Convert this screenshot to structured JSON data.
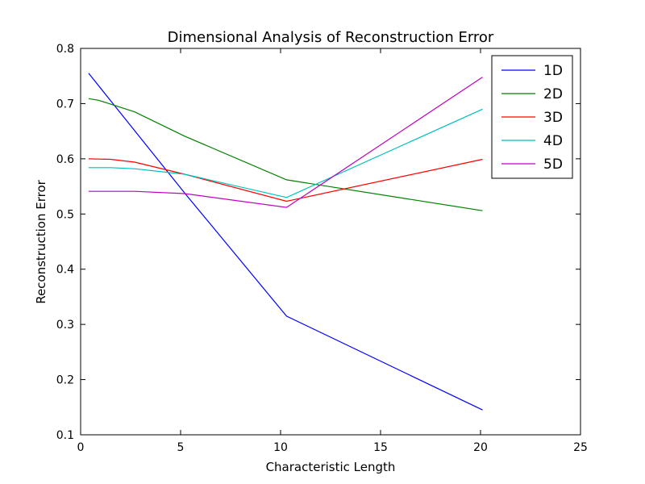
{
  "chart_data": {
    "type": "line",
    "title": "Dimensional Analysis of Reconstruction Error",
    "xlabel": "Characteristic Length",
    "ylabel": "Reconstruction Error",
    "xlim": [
      0,
      25
    ],
    "ylim": [
      0.1,
      0.8
    ],
    "xticks": [
      0,
      5,
      10,
      15,
      20,
      25
    ],
    "yticks": [
      0.1,
      0.2,
      0.3,
      0.4,
      0.5,
      0.6,
      0.7,
      0.8
    ],
    "grid": false,
    "legend_position": "top-right",
    "series": [
      {
        "name": "1D",
        "color": "#0000ff",
        "x": [
          0.4,
          5.2,
          10.3,
          20.1
        ],
        "y": [
          0.755,
          0.538,
          0.315,
          0.145
        ]
      },
      {
        "name": "2D",
        "color": "#008000",
        "x": [
          0.4,
          0.9,
          1.5,
          2.7,
          5.2,
          10.3,
          20.1
        ],
        "y": [
          0.709,
          0.706,
          0.699,
          0.685,
          0.641,
          0.562,
          0.506
        ]
      },
      {
        "name": "3D",
        "color": "#ff0000",
        "x": [
          0.4,
          1.5,
          2.7,
          5.2,
          10.3,
          20.1
        ],
        "y": [
          0.6,
          0.599,
          0.594,
          0.572,
          0.523,
          0.599
        ]
      },
      {
        "name": "4D",
        "color": "#00bfbf",
        "x": [
          0.4,
          1.5,
          2.7,
          5.2,
          10.3,
          20.1
        ],
        "y": [
          0.584,
          0.584,
          0.582,
          0.572,
          0.53,
          0.69
        ]
      },
      {
        "name": "5D",
        "color": "#bf00bf",
        "x": [
          0.4,
          1.5,
          2.7,
          5.2,
          10.3,
          20.1
        ],
        "y": [
          0.541,
          0.541,
          0.541,
          0.537,
          0.512,
          0.748
        ]
      }
    ]
  }
}
